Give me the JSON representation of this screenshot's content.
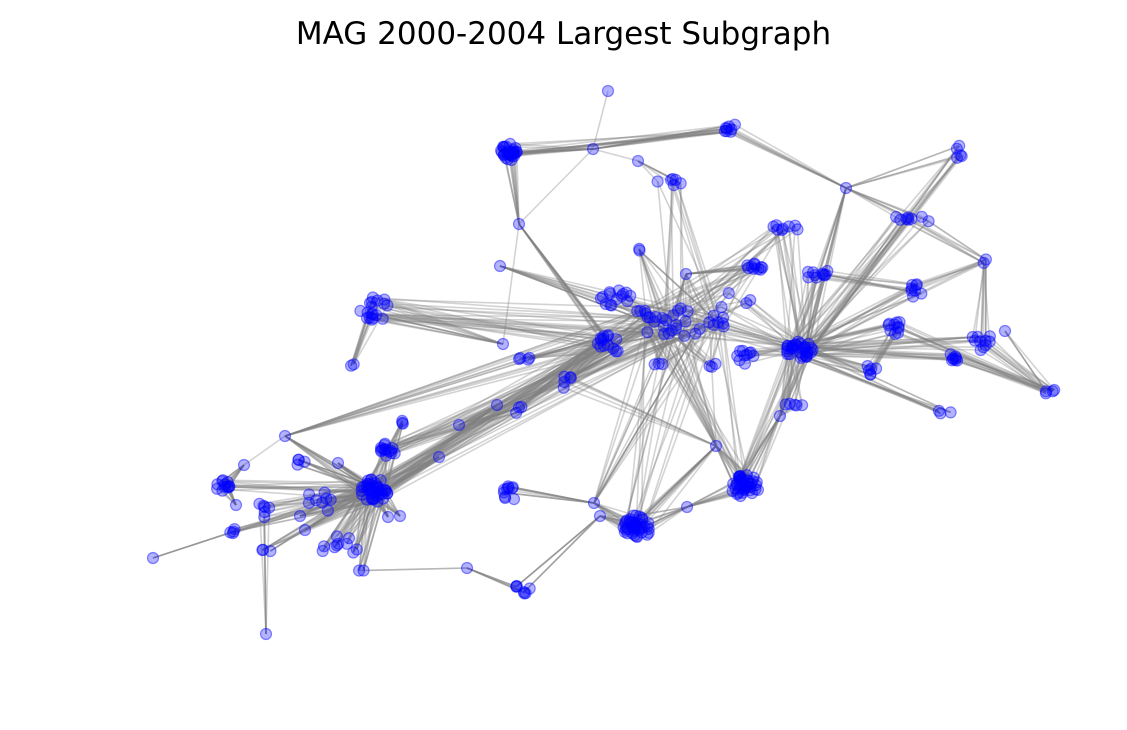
{
  "figure": {
    "title": "MAG 2000-2004 Largest Subgraph"
  },
  "style": {
    "node_color": "#0000ff",
    "node_opacity": 0.3,
    "edge_color": "#808080",
    "edge_opacity": 0.35,
    "background": "#ffffff"
  }
}
